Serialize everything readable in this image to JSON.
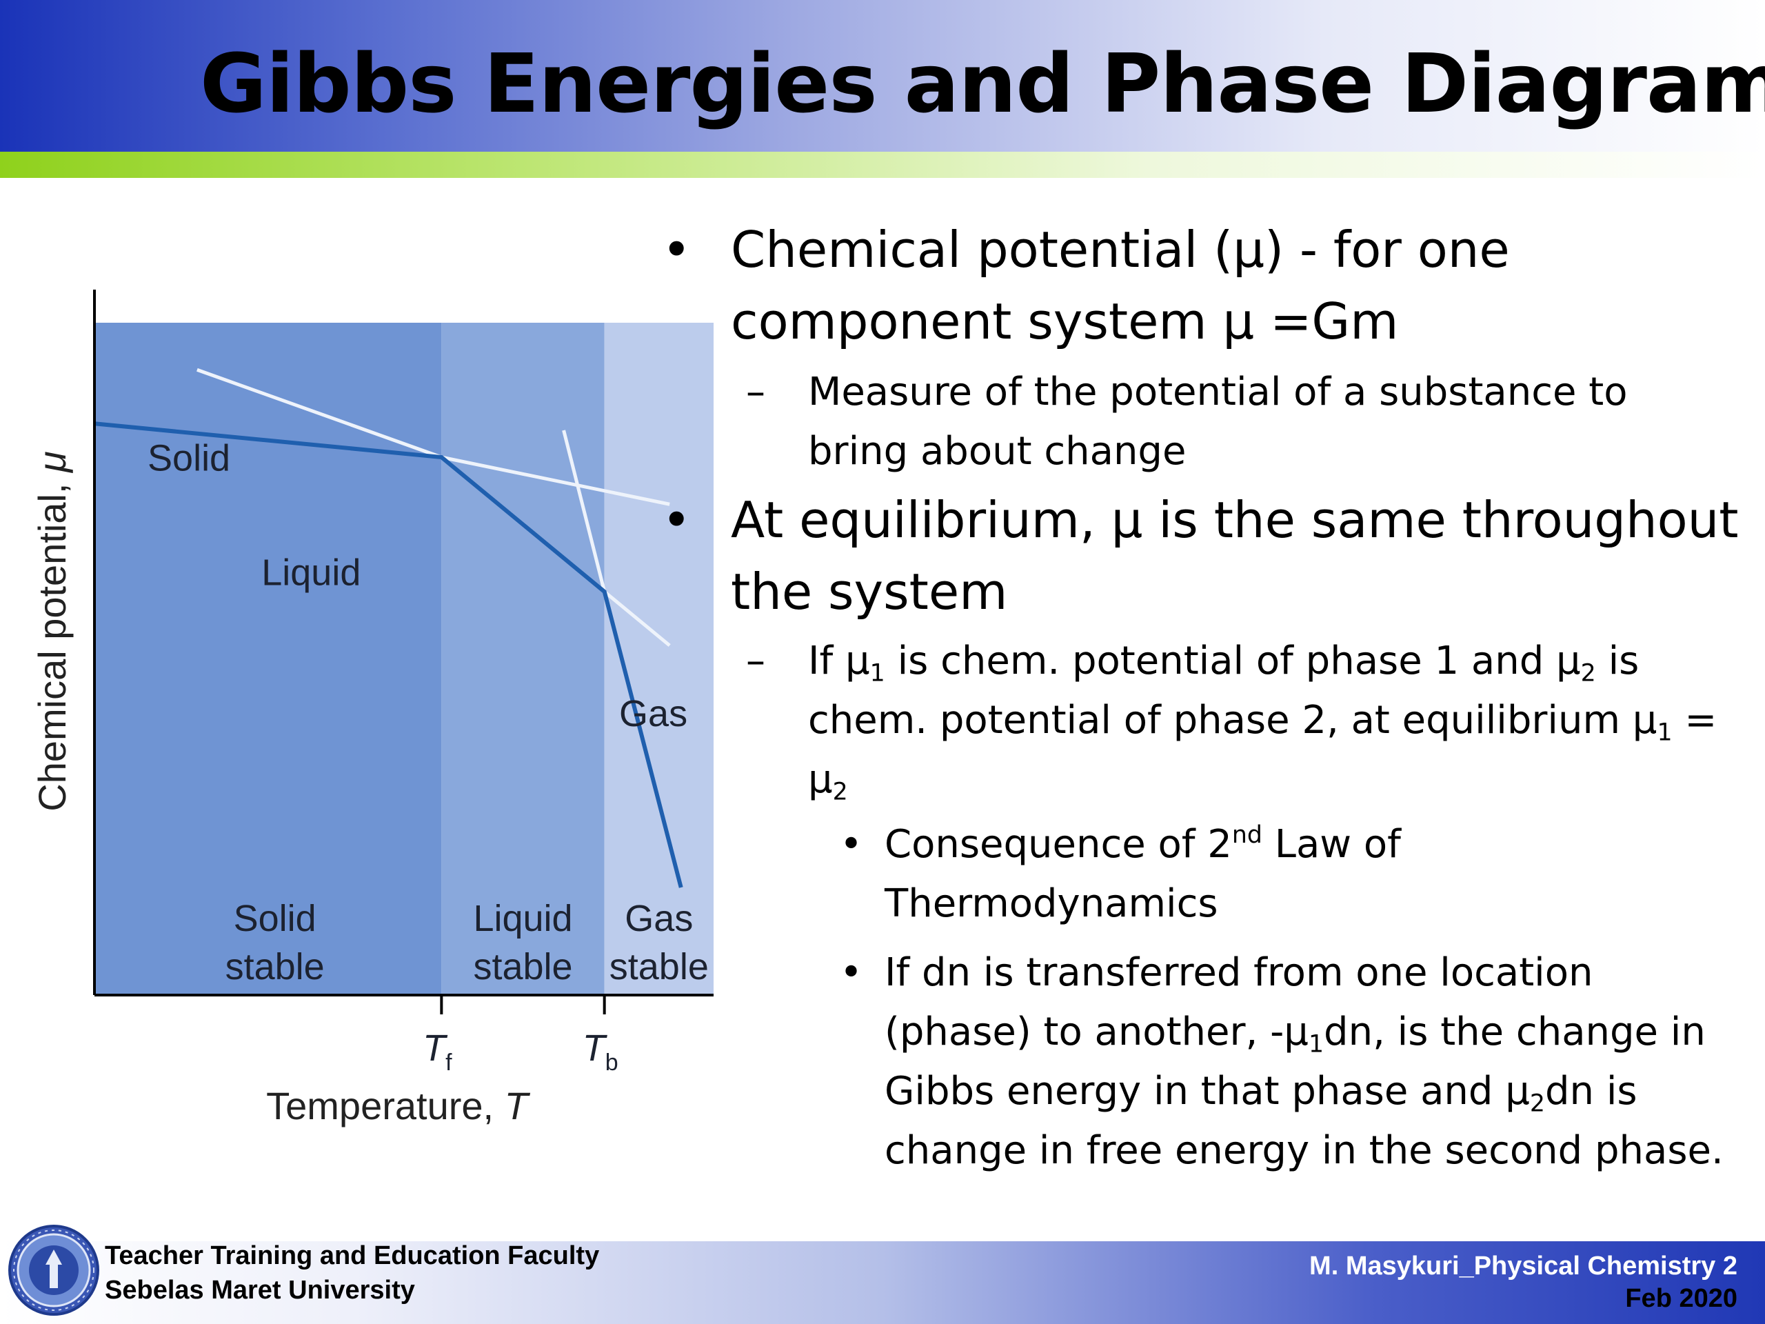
{
  "slide": {
    "title": "Gibbs Energies and Phase Diagrams"
  },
  "bullets": {
    "b1_line1": "Chemical potential (μ) - for one",
    "b1_line2": "component system μ =Gm",
    "b1_sub1_line1": "Measure of the potential of a substance to",
    "b1_sub1_line2": "bring about change",
    "b2_line1": "At equilibrium, μ is the same throughout",
    "b2_line2": "the system",
    "b2_sub1": {
      "p1": "If μ",
      "s1": "1",
      "p2": " is chem. potential of phase 1 and μ",
      "s2": "2",
      "p3": " is",
      "p4": "chem. potential of phase 2, at equilibrium μ",
      "s3": "1",
      "p5": " =",
      "p6": "μ",
      "s4": "2"
    },
    "b2_sub1_sub1": {
      "p1": "Consequence of 2",
      "sup": "nd",
      "p2": " Law of",
      "p3": "Thermodynamics"
    },
    "b2_sub1_sub2": {
      "line1": "If dn  is transferred from one location",
      "p1": "(phase) to another, -μ",
      "s1": "1",
      "p2": "dn, is the change in",
      "p3": "Gibbs energy in that phase and μ",
      "s2": "2",
      "p4": "dn is",
      "line4": "change in free energy in the second phase."
    },
    "bullet_mark": "•",
    "dash_mark": "–"
  },
  "chart_data": {
    "type": "line",
    "xlabel_text": "Temperature, ",
    "xlabel_var": "T",
    "ylabel_text": "Chemical potential, ",
    "ylabel_var": "μ",
    "ticks": [
      {
        "var": "T",
        "sub": "f",
        "x": 1
      },
      {
        "var": "T",
        "sub": "b",
        "x": 2
      }
    ],
    "xlim": [
      -1.13,
      2.67
    ],
    "ylim": [
      0,
      10
    ],
    "regions": [
      {
        "top": "Solid",
        "bottom": "stable",
        "x0": -1.13,
        "x1": 1,
        "color": "#6f94d3"
      },
      {
        "top": "Liquid",
        "bottom": "stable",
        "x0": 1,
        "x1": 2,
        "color": "#89a8dc"
      },
      {
        "top": "Gas",
        "bottom": "stable",
        "x0": 2,
        "x1": 2.67,
        "color": "#bcccec"
      }
    ],
    "series": [
      {
        "name": "Solid",
        "x": [
          -1.13,
          1,
          2.4
        ],
        "y": [
          8.5,
          8.0,
          7.3
        ],
        "label_at": [
          -0.55,
          7.8
        ]
      },
      {
        "name": "Liquid",
        "x": [
          -0.5,
          1,
          2,
          2.4
        ],
        "y": [
          9.3,
          8.0,
          6.0,
          5.2
        ],
        "label_at": [
          0.2,
          6.1
        ]
      },
      {
        "name": "Gas",
        "x": [
          1.75,
          2,
          2.47
        ],
        "y": [
          8.4,
          6.0,
          1.6
        ],
        "label_at": [
          2.3,
          4.0
        ]
      }
    ],
    "stable_path": {
      "x": [
        -1.13,
        1,
        2,
        2.47
      ],
      "y": [
        8.5,
        8.0,
        6.0,
        1.6
      ]
    },
    "colors": {
      "stable_line": "#1f5fae",
      "metastable_line": "#eef3fb",
      "axis": "#000000"
    }
  },
  "footer": {
    "institution_line1": "Teacher Training and Education Faculty",
    "institution_line2": "Sebelas Maret University",
    "author": "M. Masykuri_Physical Chemistry 2",
    "date": "Feb 2020"
  }
}
